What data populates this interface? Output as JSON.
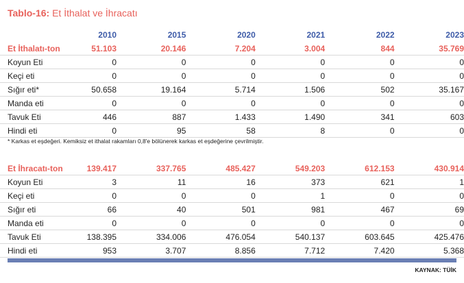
{
  "title": {
    "number": "Tablo-16:",
    "text": "Et İthalat ve İhracatı"
  },
  "years": [
    "2010",
    "2015",
    "2020",
    "2021",
    "2022",
    "2023"
  ],
  "imports": {
    "header": {
      "label": "Et İthalatı-ton",
      "values": [
        "51.103",
        "20.146",
        "7.204",
        "3.004",
        "844",
        "35.769"
      ]
    },
    "rows": [
      {
        "label": "Koyun Eti",
        "values": [
          "0",
          "0",
          "0",
          "0",
          "0",
          "0"
        ]
      },
      {
        "label": "Keçi eti",
        "values": [
          "0",
          "0",
          "0",
          "0",
          "0",
          "0"
        ]
      },
      {
        "label": "Sığır eti*",
        "values": [
          "50.658",
          "19.164",
          "5.714",
          "1.506",
          "502",
          "35.167"
        ]
      },
      {
        "label": "Manda eti",
        "values": [
          "0",
          "0",
          "0",
          "0",
          "0",
          "0"
        ]
      },
      {
        "label": "Tavuk Eti",
        "values": [
          "446",
          "887",
          "1.433",
          "1.490",
          "341",
          "603"
        ]
      },
      {
        "label": "Hindi eti",
        "values": [
          "0",
          "95",
          "58",
          "8",
          "0",
          "0"
        ]
      }
    ]
  },
  "note": "* Karkas et eşdeğeri. Kemiksiz et ithalat rakamları 0,8'e bölünerek karkas et eşdeğerine çevrilmiştir.",
  "exports": {
    "header": {
      "label": "Et İhracatı-ton",
      "values": [
        "139.417",
        "337.765",
        "485.427",
        "549.203",
        "612.153",
        "430.914"
      ]
    },
    "rows": [
      {
        "label": "Koyun Eti",
        "values": [
          "3",
          "11",
          "16",
          "373",
          "621",
          "1"
        ]
      },
      {
        "label": "Keçi eti",
        "values": [
          "0",
          "0",
          "0",
          "1",
          "0",
          "0"
        ]
      },
      {
        "label": "Sığır eti",
        "values": [
          "66",
          "40",
          "501",
          "981",
          "467",
          "69"
        ]
      },
      {
        "label": "Manda eti",
        "values": [
          "0",
          "0",
          "0",
          "0",
          "0",
          "0"
        ]
      },
      {
        "label": "Tavuk Eti",
        "values": [
          "138.395",
          "334.006",
          "476.054",
          "540.137",
          "603.645",
          "425.476"
        ]
      },
      {
        "label": "Hindi eti",
        "values": [
          "953",
          "3.707",
          "8.856",
          "7.712",
          "7.420",
          "5.368"
        ]
      }
    ]
  },
  "source": "KAYNAK: TÜİK",
  "colors": {
    "title": "#e8615b",
    "year_header": "#3d5ba8",
    "bottom_bar": "#6a7fb4",
    "rule": "#d9d9d9"
  }
}
